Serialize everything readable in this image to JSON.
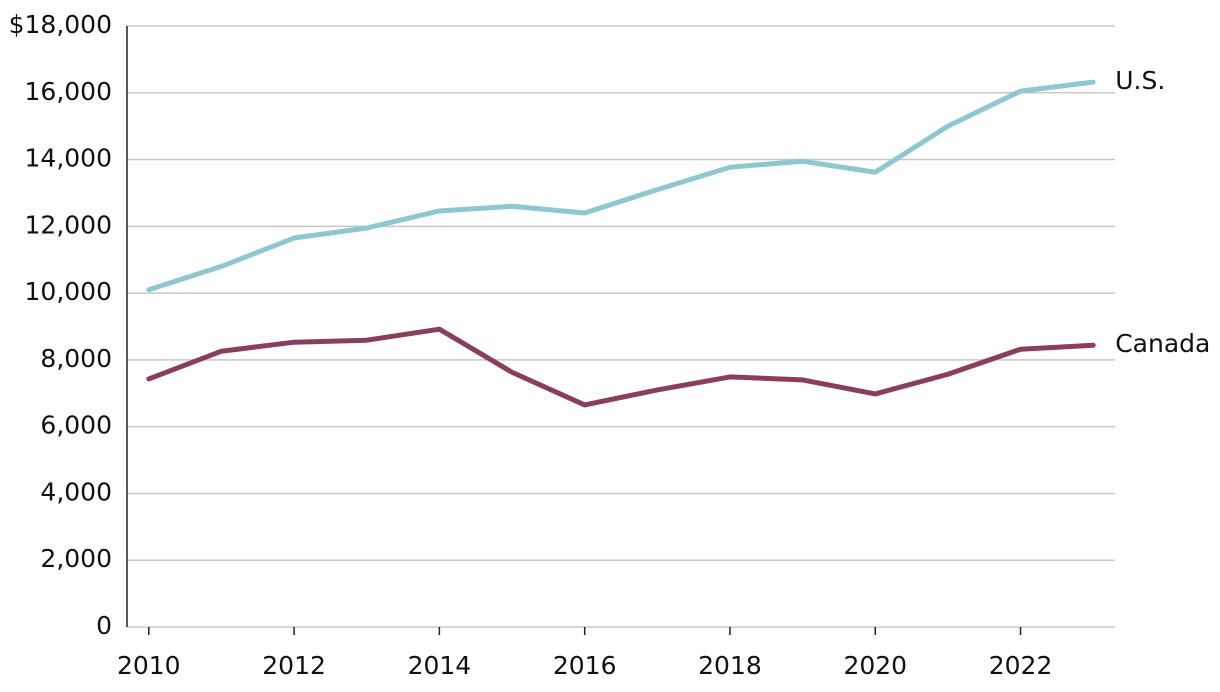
{
  "chart_data": {
    "type": "line",
    "x": [
      2010,
      2011,
      2012,
      2013,
      2014,
      2015,
      2016,
      2017,
      2018,
      2019,
      2020,
      2021,
      2022,
      2023
    ],
    "series": [
      {
        "name": "U.S.",
        "color": "#8ec8cf",
        "values": [
          10100,
          10800,
          11650,
          11950,
          12460,
          12600,
          12400,
          13100,
          13770,
          13950,
          13620,
          15000,
          16050,
          16320
        ]
      },
      {
        "name": "Canada",
        "color": "#8a3e5f",
        "values": [
          7430,
          8260,
          8530,
          8590,
          8920,
          7630,
          6650,
          7100,
          7490,
          7400,
          6980,
          7570,
          8320,
          8440
        ]
      }
    ],
    "xlim": [
      2009.7,
      2023.3
    ],
    "xticks": [
      2010,
      2012,
      2014,
      2016,
      2018,
      2020,
      2022
    ],
    "ylim": [
      0,
      18000
    ],
    "yticks": [
      0,
      {
        "value": 2000,
        "label": "2,000"
      },
      {
        "value": 4000,
        "label": "4,000"
      },
      {
        "value": 6000,
        "label": "6,000"
      },
      {
        "value": 8000,
        "label": "8,000"
      },
      {
        "value": 10000,
        "label": "10,000"
      },
      {
        "value": 12000,
        "label": "12,000"
      },
      {
        "value": 14000,
        "label": "14,000"
      },
      {
        "value": 16000,
        "label": "16,000"
      },
      {
        "value": 18000,
        "label": "$18,000"
      }
    ],
    "grid": true
  }
}
